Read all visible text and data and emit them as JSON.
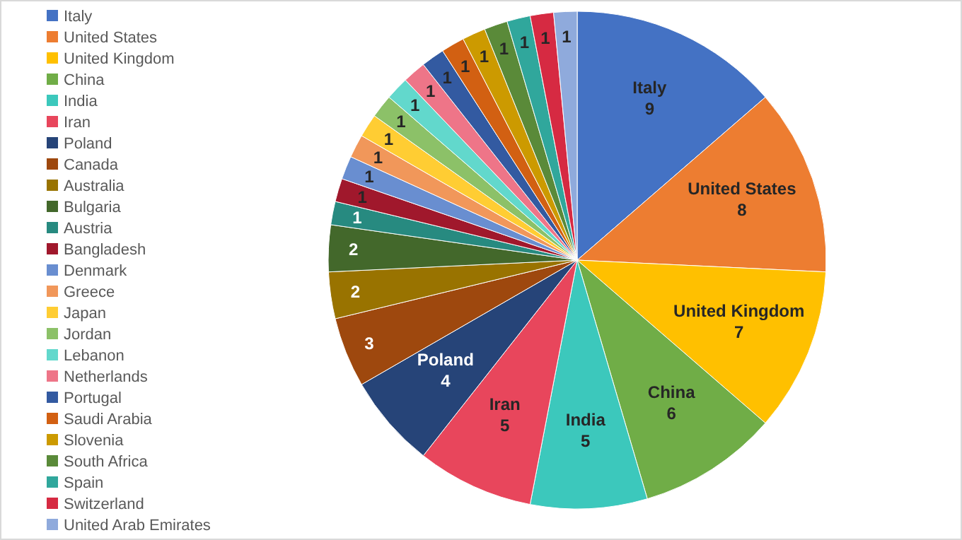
{
  "chart_data": {
    "type": "pie",
    "categories": [
      "Italy",
      "United States",
      "United Kingdom",
      "China",
      "India",
      "Iran",
      "Poland",
      "Canada",
      "Australia",
      "Bulgaria",
      "Austria",
      "Bangladesh",
      "Denmark",
      "Greece",
      "Japan",
      "Jordan",
      "Lebanon",
      "Netherlands",
      "Portugal",
      "Saudi Arabia",
      "Slovenia",
      "South Africa",
      "Spain",
      "Switzerland",
      "United Arab Emirates"
    ],
    "values": [
      9,
      8,
      7,
      6,
      5,
      5,
      4,
      3,
      2,
      2,
      1,
      1,
      1,
      1,
      1,
      1,
      1,
      1,
      1,
      1,
      1,
      1,
      1,
      1,
      1
    ],
    "colors": [
      "#4472c4",
      "#ed7d31",
      "#ffc000",
      "#70ad47",
      "#3cc8bc",
      "#e8465c",
      "#264478",
      "#9e480e",
      "#997300",
      "#43682b",
      "#278a80",
      "#a0182c",
      "#698ed0",
      "#f1975a",
      "#ffcd33",
      "#8cc168",
      "#62d8cc",
      "#ee7588",
      "#335aa1",
      "#d26012",
      "#cc9a00",
      "#5a8a39",
      "#30a79c",
      "#d62a42",
      "#8faadc"
    ],
    "data_labels": true,
    "legend": "left"
  }
}
